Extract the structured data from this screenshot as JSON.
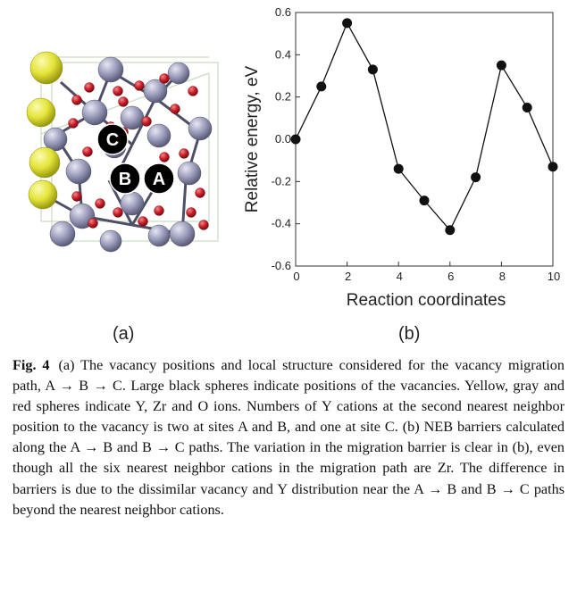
{
  "panel_a": {
    "vacancy_labels": [
      "C",
      "B",
      "A"
    ],
    "sphere_colors": {
      "Y": "#e4e43a",
      "Zr": "#9a9cbb",
      "O": "#cc1f2a",
      "vacancy": "#000000"
    }
  },
  "panel_a_label": "(a)",
  "panel_b_label": "(b)",
  "chart_data": {
    "type": "line",
    "xlabel": "Reaction coordinates",
    "ylabel": "Relative energy, eV",
    "x": [
      0,
      1,
      2,
      3,
      4,
      5,
      6,
      7,
      8,
      9,
      10
    ],
    "y": [
      0.0,
      0.25,
      0.55,
      0.33,
      -0.14,
      -0.29,
      -0.43,
      -0.18,
      0.35,
      0.15,
      -0.13
    ],
    "xlim": [
      0,
      10
    ],
    "ylim": [
      -0.6,
      0.6
    ],
    "x_ticks": [
      0,
      2,
      4,
      6,
      8,
      10
    ],
    "y_ticks": [
      -0.6,
      -0.4,
      -0.2,
      0.0,
      0.2,
      0.4,
      0.6
    ],
    "y_tick_labels": [
      "-0.6",
      "-0.4",
      "-0.2",
      "0.0",
      "0.2",
      "0.4",
      "0.6"
    ],
    "marker": "filled-circle",
    "line_color": "#111111",
    "grid": false
  },
  "caption": {
    "fig_label": "Fig. 4",
    "text": "(a) The vacancy positions and local structure considered for the vacancy migration path, A → B → C. Large black spheres indicate positions of the vacancies. Yellow, gray and red spheres indicate Y, Zr and O ions. Numbers of Y cations at the second nearest neighbor position to the vacancy is two at sites A and B, and one at site C. (b) NEB barriers calculated along the A → B and B → C paths. The variation in the migration barrier is clear in (b), even though all the six nearest neighbor cations in the migration path are Zr. The difference in barriers is due to the dissimilar vacancy and Y distribution near the A → B and B → C paths beyond the nearest neighbor cations."
  }
}
